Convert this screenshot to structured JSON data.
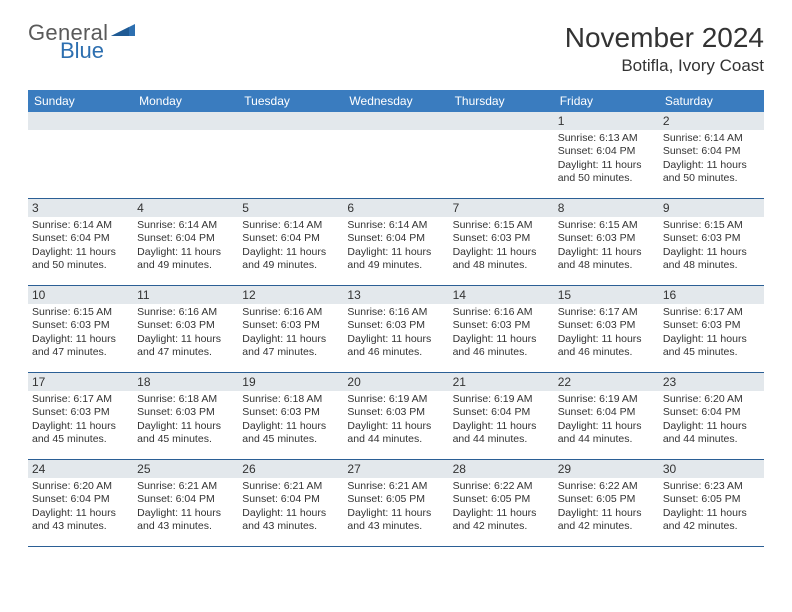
{
  "logo": {
    "general": "General",
    "blue": "Blue"
  },
  "title": "November 2024",
  "location": "Botifla, Ivory Coast",
  "colors": {
    "header_band": "#3a7cbf",
    "header_text": "#ffffff",
    "day_band": "#e3e8ec",
    "rule": "#2b5f95",
    "body_text": "#333333",
    "logo_gray": "#5a5a5a",
    "logo_blue": "#2d6fb0"
  },
  "weekdays": [
    "Sunday",
    "Monday",
    "Tuesday",
    "Wednesday",
    "Thursday",
    "Friday",
    "Saturday"
  ],
  "weeks": [
    [
      null,
      null,
      null,
      null,
      null,
      {
        "d": "1",
        "sr": "Sunrise: 6:13 AM",
        "ss": "Sunset: 6:04 PM",
        "dl1": "Daylight: 11 hours",
        "dl2": "and 50 minutes."
      },
      {
        "d": "2",
        "sr": "Sunrise: 6:14 AM",
        "ss": "Sunset: 6:04 PM",
        "dl1": "Daylight: 11 hours",
        "dl2": "and 50 minutes."
      }
    ],
    [
      {
        "d": "3",
        "sr": "Sunrise: 6:14 AM",
        "ss": "Sunset: 6:04 PM",
        "dl1": "Daylight: 11 hours",
        "dl2": "and 50 minutes."
      },
      {
        "d": "4",
        "sr": "Sunrise: 6:14 AM",
        "ss": "Sunset: 6:04 PM",
        "dl1": "Daylight: 11 hours",
        "dl2": "and 49 minutes."
      },
      {
        "d": "5",
        "sr": "Sunrise: 6:14 AM",
        "ss": "Sunset: 6:04 PM",
        "dl1": "Daylight: 11 hours",
        "dl2": "and 49 minutes."
      },
      {
        "d": "6",
        "sr": "Sunrise: 6:14 AM",
        "ss": "Sunset: 6:04 PM",
        "dl1": "Daylight: 11 hours",
        "dl2": "and 49 minutes."
      },
      {
        "d": "7",
        "sr": "Sunrise: 6:15 AM",
        "ss": "Sunset: 6:03 PM",
        "dl1": "Daylight: 11 hours",
        "dl2": "and 48 minutes."
      },
      {
        "d": "8",
        "sr": "Sunrise: 6:15 AM",
        "ss": "Sunset: 6:03 PM",
        "dl1": "Daylight: 11 hours",
        "dl2": "and 48 minutes."
      },
      {
        "d": "9",
        "sr": "Sunrise: 6:15 AM",
        "ss": "Sunset: 6:03 PM",
        "dl1": "Daylight: 11 hours",
        "dl2": "and 48 minutes."
      }
    ],
    [
      {
        "d": "10",
        "sr": "Sunrise: 6:15 AM",
        "ss": "Sunset: 6:03 PM",
        "dl1": "Daylight: 11 hours",
        "dl2": "and 47 minutes."
      },
      {
        "d": "11",
        "sr": "Sunrise: 6:16 AM",
        "ss": "Sunset: 6:03 PM",
        "dl1": "Daylight: 11 hours",
        "dl2": "and 47 minutes."
      },
      {
        "d": "12",
        "sr": "Sunrise: 6:16 AM",
        "ss": "Sunset: 6:03 PM",
        "dl1": "Daylight: 11 hours",
        "dl2": "and 47 minutes."
      },
      {
        "d": "13",
        "sr": "Sunrise: 6:16 AM",
        "ss": "Sunset: 6:03 PM",
        "dl1": "Daylight: 11 hours",
        "dl2": "and 46 minutes."
      },
      {
        "d": "14",
        "sr": "Sunrise: 6:16 AM",
        "ss": "Sunset: 6:03 PM",
        "dl1": "Daylight: 11 hours",
        "dl2": "and 46 minutes."
      },
      {
        "d": "15",
        "sr": "Sunrise: 6:17 AM",
        "ss": "Sunset: 6:03 PM",
        "dl1": "Daylight: 11 hours",
        "dl2": "and 46 minutes."
      },
      {
        "d": "16",
        "sr": "Sunrise: 6:17 AM",
        "ss": "Sunset: 6:03 PM",
        "dl1": "Daylight: 11 hours",
        "dl2": "and 45 minutes."
      }
    ],
    [
      {
        "d": "17",
        "sr": "Sunrise: 6:17 AM",
        "ss": "Sunset: 6:03 PM",
        "dl1": "Daylight: 11 hours",
        "dl2": "and 45 minutes."
      },
      {
        "d": "18",
        "sr": "Sunrise: 6:18 AM",
        "ss": "Sunset: 6:03 PM",
        "dl1": "Daylight: 11 hours",
        "dl2": "and 45 minutes."
      },
      {
        "d": "19",
        "sr": "Sunrise: 6:18 AM",
        "ss": "Sunset: 6:03 PM",
        "dl1": "Daylight: 11 hours",
        "dl2": "and 45 minutes."
      },
      {
        "d": "20",
        "sr": "Sunrise: 6:19 AM",
        "ss": "Sunset: 6:03 PM",
        "dl1": "Daylight: 11 hours",
        "dl2": "and 44 minutes."
      },
      {
        "d": "21",
        "sr": "Sunrise: 6:19 AM",
        "ss": "Sunset: 6:04 PM",
        "dl1": "Daylight: 11 hours",
        "dl2": "and 44 minutes."
      },
      {
        "d": "22",
        "sr": "Sunrise: 6:19 AM",
        "ss": "Sunset: 6:04 PM",
        "dl1": "Daylight: 11 hours",
        "dl2": "and 44 minutes."
      },
      {
        "d": "23",
        "sr": "Sunrise: 6:20 AM",
        "ss": "Sunset: 6:04 PM",
        "dl1": "Daylight: 11 hours",
        "dl2": "and 44 minutes."
      }
    ],
    [
      {
        "d": "24",
        "sr": "Sunrise: 6:20 AM",
        "ss": "Sunset: 6:04 PM",
        "dl1": "Daylight: 11 hours",
        "dl2": "and 43 minutes."
      },
      {
        "d": "25",
        "sr": "Sunrise: 6:21 AM",
        "ss": "Sunset: 6:04 PM",
        "dl1": "Daylight: 11 hours",
        "dl2": "and 43 minutes."
      },
      {
        "d": "26",
        "sr": "Sunrise: 6:21 AM",
        "ss": "Sunset: 6:04 PM",
        "dl1": "Daylight: 11 hours",
        "dl2": "and 43 minutes."
      },
      {
        "d": "27",
        "sr": "Sunrise: 6:21 AM",
        "ss": "Sunset: 6:05 PM",
        "dl1": "Daylight: 11 hours",
        "dl2": "and 43 minutes."
      },
      {
        "d": "28",
        "sr": "Sunrise: 6:22 AM",
        "ss": "Sunset: 6:05 PM",
        "dl1": "Daylight: 11 hours",
        "dl2": "and 42 minutes."
      },
      {
        "d": "29",
        "sr": "Sunrise: 6:22 AM",
        "ss": "Sunset: 6:05 PM",
        "dl1": "Daylight: 11 hours",
        "dl2": "and 42 minutes."
      },
      {
        "d": "30",
        "sr": "Sunrise: 6:23 AM",
        "ss": "Sunset: 6:05 PM",
        "dl1": "Daylight: 11 hours",
        "dl2": "and 42 minutes."
      }
    ]
  ]
}
